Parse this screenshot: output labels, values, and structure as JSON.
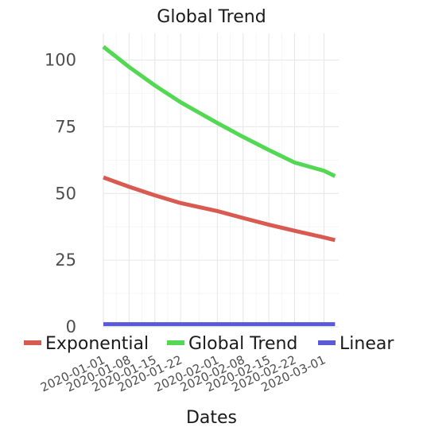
{
  "chart_data": {
    "type": "line",
    "title": "Global Trend",
    "xlabel": "Dates",
    "ylabel": "",
    "x_ticks": [
      "2020-01-01",
      "2020-01-08",
      "2020-01-15",
      "2020-01-22",
      "2020-02-01",
      "2020-02-08",
      "2020-02-15",
      "2020-02-22",
      "2020-03-01"
    ],
    "x_domain": [
      "2020-01-01",
      "2020-03-05"
    ],
    "ylim": [
      0,
      110
    ],
    "y_ticks": [
      0,
      25,
      50,
      75,
      100
    ],
    "grid": true,
    "legend_position": "bottom",
    "x": [
      "2020-01-01",
      "2020-01-08",
      "2020-01-15",
      "2020-01-22",
      "2020-02-01",
      "2020-02-08",
      "2020-02-15",
      "2020-02-22",
      "2020-03-01",
      "2020-03-04"
    ],
    "series": [
      {
        "name": "Exponential",
        "color": "#d95a50",
        "values": [
          56,
          52.5,
          49.3,
          46.4,
          43.4,
          40.8,
          38.3,
          36,
          33.5,
          32.5
        ]
      },
      {
        "name": "Global Trend",
        "color": "#52d852",
        "values": [
          105,
          97.4,
          90.5,
          84.2,
          76.4,
          71.2,
          66.3,
          61.6,
          58.5,
          56.5
        ]
      },
      {
        "name": "Linear",
        "color": "#5a5ad9",
        "values": [
          1,
          1,
          1,
          1,
          1,
          1,
          1,
          1,
          1,
          1
        ]
      }
    ]
  }
}
